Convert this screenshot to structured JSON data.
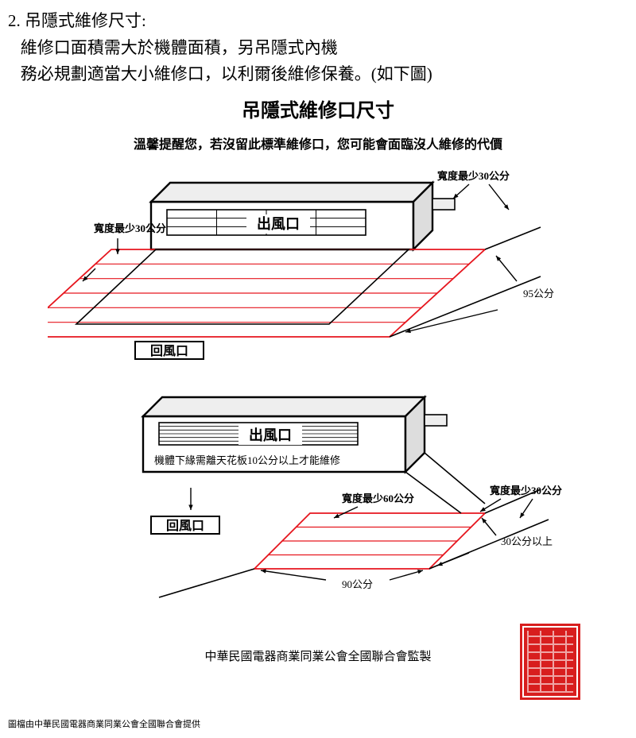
{
  "header": {
    "number": "2.",
    "title": "吊隱式維修尺寸:",
    "line1": "維修口面積需大於機體面積，另吊隱式內機",
    "line2": "務必規劃適當大小維修口，以利爾後維修保養。(如下圖)"
  },
  "diagramTitle": "吊隱式維修口尺寸",
  "reminder": "溫馨提醒您，若沒留此標準維修口，您可能會面臨沒人維修的代價",
  "labels": {
    "outlet": "出風口",
    "inlet": "回風口",
    "widthMin30Left": "寬度最少30公分",
    "widthMin30Right": "寬度最少30公分",
    "depth95": "95公分",
    "clearance10": "機體下緣需離天花板10公分以上才能維修",
    "widthMin60": "寬度最少60公分",
    "depth30plus": "30公分以上",
    "width90": "90公分"
  },
  "source": "中華民國電器商業同業公會全國聯合會監製",
  "footnote": "圖檔由中華民國電器商業同業公會全國聯合會提供",
  "colors": {
    "stroke": "#000000",
    "red": "#e6161e",
    "bg": "#ffffff",
    "seal": "#d81e1e"
  },
  "style": {
    "lineW": 1.6,
    "thickW": 2.4,
    "redW": 1.8,
    "font": "Microsoft JhengHei"
  }
}
